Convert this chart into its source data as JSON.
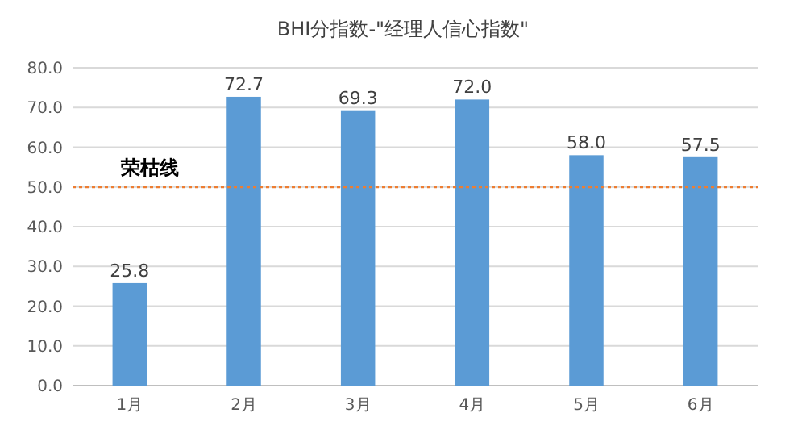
{
  "chart_data": {
    "type": "bar",
    "title": "BHI分指数-\"经理人信心指数\"",
    "categories": [
      "1月",
      "2月",
      "3月",
      "4月",
      "5月",
      "6月"
    ],
    "values": [
      25.8,
      72.7,
      69.3,
      72.0,
      58.0,
      57.5
    ],
    "value_labels": [
      "25.8",
      "72.7",
      "69.3",
      "72.0",
      "58.0",
      "57.5"
    ],
    "color": "#5b9bd5",
    "ylim": [
      0,
      80
    ],
    "yticks": [
      {
        "value": 0,
        "label": "0.0"
      },
      {
        "value": 10,
        "label": "10.0"
      },
      {
        "value": 20,
        "label": "20.0"
      },
      {
        "value": 30,
        "label": "30.0"
      },
      {
        "value": 40,
        "label": "40.0"
      },
      {
        "value": 50,
        "label": "50.0"
      },
      {
        "value": 60,
        "label": "60.0"
      },
      {
        "value": 70,
        "label": "70.0"
      },
      {
        "value": 80,
        "label": "80.0"
      }
    ],
    "grid": "y",
    "ref_lines": [
      {
        "axis": "y",
        "value": 50,
        "label": "荣枯线",
        "color": "#ed7d31",
        "line_style": "dotted"
      }
    ]
  }
}
